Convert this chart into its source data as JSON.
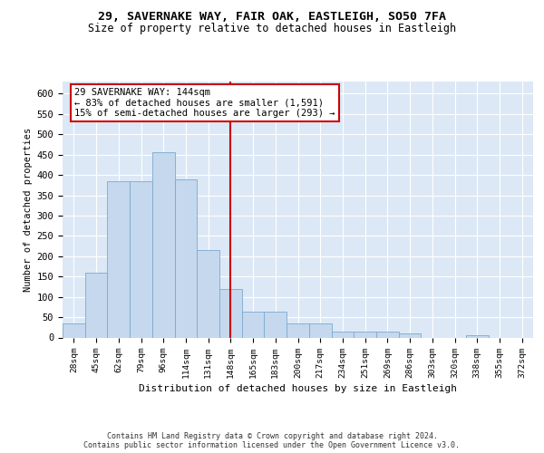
{
  "title1": "29, SAVERNAKE WAY, FAIR OAK, EASTLEIGH, SO50 7FA",
  "title2": "Size of property relative to detached houses in Eastleigh",
  "xlabel": "Distribution of detached houses by size in Eastleigh",
  "ylabel": "Number of detached properties",
  "footer1": "Contains HM Land Registry data © Crown copyright and database right 2024.",
  "footer2": "Contains public sector information licensed under the Open Government Licence v3.0.",
  "property_label": "29 SAVERNAKE WAY: 144sqm",
  "annotation_line1": "← 83% of detached houses are smaller (1,591)",
  "annotation_line2": "15% of semi-detached houses are larger (293) →",
  "bar_color": "#c5d8ee",
  "bar_edge_color": "#7aaad0",
  "vline_color": "#cc0000",
  "bg_color": "#dce8f5",
  "grid_color": "#ffffff",
  "categories": [
    "28sqm",
    "45sqm",
    "62sqm",
    "79sqm",
    "96sqm",
    "114sqm",
    "131sqm",
    "148sqm",
    "165sqm",
    "183sqm",
    "200sqm",
    "217sqm",
    "234sqm",
    "251sqm",
    "269sqm",
    "286sqm",
    "303sqm",
    "320sqm",
    "338sqm",
    "355sqm",
    "372sqm"
  ],
  "values": [
    35,
    160,
    385,
    385,
    455,
    390,
    215,
    120,
    63,
    63,
    35,
    35,
    15,
    15,
    15,
    10,
    0,
    0,
    5,
    0,
    0
  ],
  "vline_pos": 7.0,
  "ylim": [
    0,
    630
  ],
  "yticks": [
    0,
    50,
    100,
    150,
    200,
    250,
    300,
    350,
    400,
    450,
    500,
    550,
    600
  ],
  "title1_fontsize": 9.5,
  "title2_fontsize": 8.5,
  "xlabel_fontsize": 8.0,
  "ylabel_fontsize": 7.5,
  "tick_fontsize": 7.5,
  "xtick_fontsize": 6.8,
  "footer_fontsize": 6.0,
  "annot_fontsize": 7.5
}
